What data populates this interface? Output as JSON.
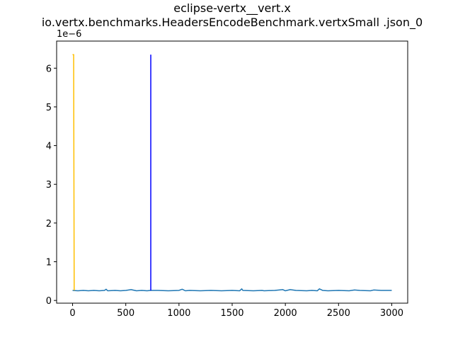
{
  "chart_data": {
    "type": "line",
    "title": "eclipse-vertx__vert.x",
    "subtitle": "io.vertx.benchmarks.HeadersEncodeBenchmark.vertxSmall .json_0",
    "xlabel": "",
    "ylabel": "",
    "y_scale_label": "1e−6",
    "xlim": [
      -150,
      3150
    ],
    "ylim": [
      -0.07,
      6.7
    ],
    "x_ticks": [
      0,
      500,
      1000,
      1500,
      2000,
      2500,
      3000
    ],
    "x_tick_labels": [
      "0",
      "500",
      "1000",
      "1500",
      "2000",
      "2500",
      "3000"
    ],
    "y_ticks": [
      0,
      1,
      2,
      3,
      4,
      5,
      6
    ],
    "y_tick_labels": [
      "0",
      "1",
      "2",
      "3",
      "4",
      "5",
      "6"
    ],
    "grid": false,
    "series": [
      {
        "color": "#1f77b4",
        "baseline": 0.26,
        "x": [
          0,
          50,
          100,
          150,
          200,
          250,
          300,
          315,
          330,
          400,
          450,
          500,
          550,
          600,
          650,
          700,
          735,
          800,
          900,
          1000,
          1030,
          1060,
          1100,
          1200,
          1300,
          1400,
          1500,
          1570,
          1590,
          1600,
          1700,
          1780,
          1800,
          1900,
          1975,
          2000,
          2045,
          2100,
          2200,
          2250,
          2300,
          2320,
          2350,
          2400,
          2500,
          2600,
          2650,
          2700,
          2800,
          2830,
          2900,
          3000
        ],
        "y": [
          0.26,
          0.25,
          0.26,
          0.25,
          0.26,
          0.25,
          0.26,
          0.29,
          0.25,
          0.26,
          0.25,
          0.26,
          0.28,
          0.25,
          0.26,
          0.25,
          0.26,
          0.26,
          0.25,
          0.26,
          0.29,
          0.25,
          0.26,
          0.25,
          0.26,
          0.25,
          0.26,
          0.25,
          0.3,
          0.26,
          0.25,
          0.26,
          0.25,
          0.26,
          0.28,
          0.25,
          0.28,
          0.26,
          0.25,
          0.26,
          0.25,
          0.3,
          0.26,
          0.25,
          0.26,
          0.25,
          0.27,
          0.26,
          0.25,
          0.27,
          0.26,
          0.26
        ]
      },
      {
        "color": "#ffbf00",
        "x": [
          0,
          5,
          10,
          15
        ],
        "y": [
          6.35,
          6.35,
          6.35,
          0.26
        ]
      },
      {
        "color": "#0000ff",
        "x": [
          735,
          735
        ],
        "y": [
          0.26,
          6.35
        ]
      }
    ]
  }
}
